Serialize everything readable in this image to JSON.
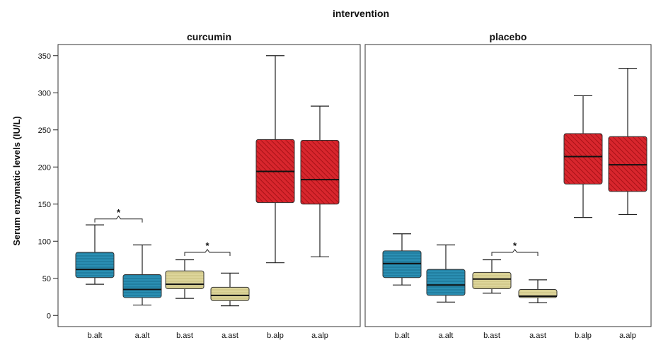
{
  "chart_data": {
    "type": "boxplot",
    "title": "intervention",
    "ylabel": "Serum enzymatic levels (IU/L)",
    "ylim": [
      -15,
      365
    ],
    "yticks": [
      0,
      50,
      100,
      150,
      200,
      250,
      300,
      350
    ],
    "grid": false,
    "legend": "none",
    "colors": {
      "alt": "#2a8fb3",
      "ast": "#ddd59a",
      "alp": "#d8262d"
    },
    "panels": [
      {
        "name": "curcumin",
        "categories": [
          "b.alt",
          "a.alt",
          "b.ast",
          "a.ast",
          "b.alp",
          "a.alp"
        ],
        "boxes": [
          {
            "label": "b.alt",
            "enzyme": "alt",
            "min": 42,
            "q1": 51,
            "median": 62,
            "q3": 85,
            "max": 122
          },
          {
            "label": "a.alt",
            "enzyme": "alt",
            "min": 14,
            "q1": 24,
            "median": 35,
            "q3": 55,
            "max": 95
          },
          {
            "label": "b.ast",
            "enzyme": "ast",
            "min": 23,
            "q1": 36,
            "median": 42,
            "q3": 60,
            "max": 75
          },
          {
            "label": "a.ast",
            "enzyme": "ast",
            "min": 13,
            "q1": 20,
            "median": 27,
            "q3": 38,
            "max": 57
          },
          {
            "label": "b.alp",
            "enzyme": "alp",
            "min": 71,
            "q1": 152,
            "median": 194,
            "q3": 237,
            "max": 350
          },
          {
            "label": "a.alp",
            "enzyme": "alp",
            "min": 79,
            "q1": 150,
            "median": 183,
            "q3": 236,
            "max": 282
          }
        ],
        "significance": [
          {
            "from": "b.alt",
            "to": "a.alt",
            "y": 130,
            "label": "*"
          },
          {
            "from": "b.ast",
            "to": "a.ast",
            "y": 85,
            "label": "*"
          }
        ]
      },
      {
        "name": "placebo",
        "categories": [
          "b.alt",
          "a.alt",
          "b.ast",
          "a.ast",
          "b.alp",
          "a.alp"
        ],
        "boxes": [
          {
            "label": "b.alt",
            "enzyme": "alt",
            "min": 41,
            "q1": 51,
            "median": 70,
            "q3": 87,
            "max": 110
          },
          {
            "label": "a.alt",
            "enzyme": "alt",
            "min": 18,
            "q1": 27,
            "median": 41,
            "q3": 62,
            "max": 95
          },
          {
            "label": "b.ast",
            "enzyme": "ast",
            "min": 30,
            "q1": 36,
            "median": 49,
            "q3": 58,
            "max": 75
          },
          {
            "label": "a.ast",
            "enzyme": "ast",
            "min": 17,
            "q1": 24,
            "median": 26,
            "q3": 35,
            "max": 48
          },
          {
            "label": "b.alp",
            "enzyme": "alp",
            "min": 132,
            "q1": 177,
            "median": 214,
            "q3": 245,
            "max": 296
          },
          {
            "label": "a.alp",
            "enzyme": "alp",
            "min": 136,
            "q1": 167,
            "median": 203,
            "q3": 241,
            "max": 333
          }
        ],
        "significance": [
          {
            "from": "b.ast",
            "to": "a.ast",
            "y": 85,
            "label": "*"
          }
        ]
      }
    ]
  }
}
